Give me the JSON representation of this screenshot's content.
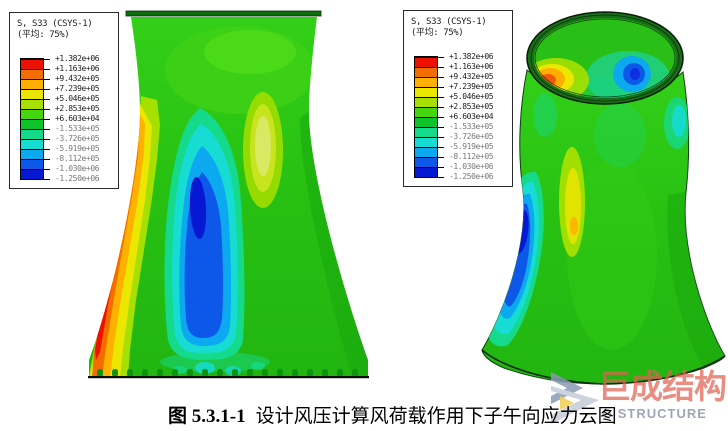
{
  "caption": {
    "label": "图 5.3.1-1",
    "text": "设计风压计算风荷载作用下子午向应力云图"
  },
  "legend": {
    "title_line1": "S, S33 (CSYS-1)",
    "title_line2": "(平均: 75%)",
    "tick_values": [
      "+1.382e+06",
      "+1.163e+06",
      "+9.432e+05",
      "+7.239e+05",
      "+5.046e+05",
      "+2.853e+05",
      "+6.603e+04",
      "-1.533e+05",
      "-3.726e+05",
      "-5.919e+05",
      "-8.112e+05",
      "-1.030e+06",
      "-1.250e+06"
    ],
    "band_colors": [
      "#ee1000",
      "#f46d00",
      "#ffb000",
      "#ece700",
      "#a6e000",
      "#46d60f",
      "#0fc32a",
      "#15da8c",
      "#17dcd4",
      "#0ca8f0",
      "#0d58e8",
      "#0718d2"
    ]
  },
  "watermark": {
    "text_cn": "巨成结构",
    "text_en": "G STRUCTURE",
    "cn_color": "#e0604f",
    "en_color": "#8b98a8"
  }
}
